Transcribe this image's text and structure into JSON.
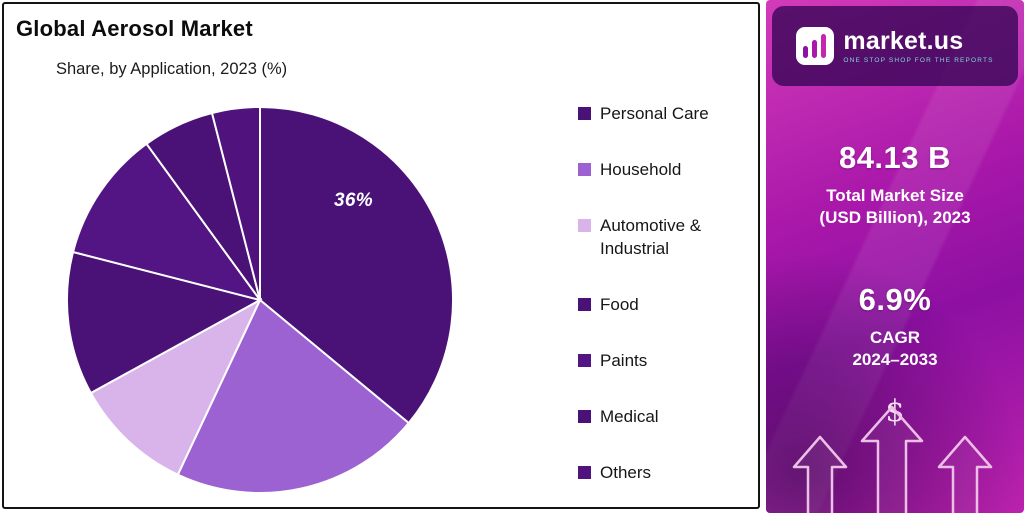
{
  "card": {
    "title": "Global Aerosol Market",
    "subtitle": "Share, by Application, 2023 (%)"
  },
  "chart_data": {
    "type": "pie",
    "title": "Global Aerosol Market Share, by Application, 2023 (%)",
    "labels": [
      "Personal Care",
      "Household",
      "Automotive & Industrial",
      "Food",
      "Paints",
      "Medical",
      "Others"
    ],
    "values": [
      36,
      21,
      10,
      12,
      11,
      6,
      4
    ],
    "colors": [
      "#4a1277",
      "#9c62d1",
      "#d9b4ea",
      "#4a1277",
      "#531583",
      "#4a1277",
      "#50127c"
    ],
    "shown_label": "36%",
    "labeled_slice": "Personal Care",
    "start_angle_deg": 0,
    "direction": "clockwise",
    "legend_position": "right",
    "slice_border_color": "#ffffff"
  },
  "panel": {
    "logo_text": "market.us",
    "logo_tagline": "ONE STOP SHOP FOR THE REPORTS",
    "market_size_value": "84.13 B",
    "market_size_label_line1": "Total Market Size",
    "market_size_label_line2": "(USD Billion), 2023",
    "cagr_value": "6.9%",
    "cagr_label_line1": "CAGR",
    "cagr_label_line2": "2024–2033",
    "dollar_symbol": "$"
  }
}
